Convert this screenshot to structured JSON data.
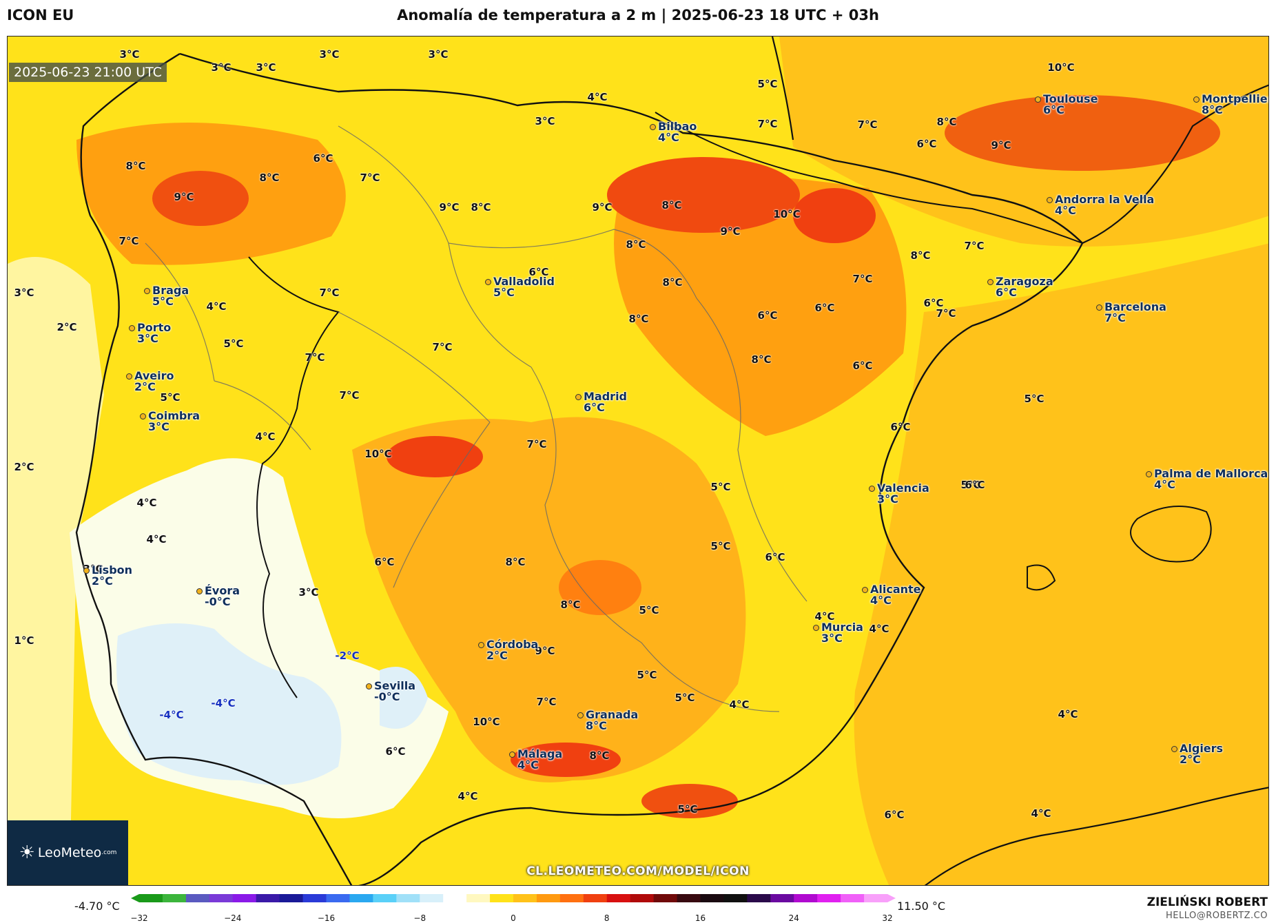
{
  "header": {
    "model": "ICON EU",
    "title": "Anomalía de temperatura a 2 m | 2025-06-23 18 UTC + 03h"
  },
  "map": {
    "valid_time": "2025-06-23 21:00 UTC",
    "watermark_url": "CL.LEOMETEO.COM/MODEL/ICON",
    "logo": {
      "brand": "LeoMeteo",
      "suffix": ".com",
      "icon": "sun-icon"
    },
    "cities": [
      {
        "name": "Bilbao",
        "value": "4°C"
      },
      {
        "name": "Toulouse",
        "value": "6°C"
      },
      {
        "name": "Montpellier",
        "value": "8°C"
      },
      {
        "name": "Andorra la Vella",
        "value": "4°C"
      },
      {
        "name": "Valladolid",
        "value": "5°C"
      },
      {
        "name": "Zaragoza",
        "value": "6°C"
      },
      {
        "name": "Braga",
        "value": "5°C"
      },
      {
        "name": "Barcelona",
        "value": "7°C"
      },
      {
        "name": "Porto",
        "value": "3°C"
      },
      {
        "name": "Aveiro",
        "value": "2°C"
      },
      {
        "name": "Madrid",
        "value": "6°C"
      },
      {
        "name": "Coimbra",
        "value": "3°C"
      },
      {
        "name": "Valencia",
        "value": "3°C"
      },
      {
        "name": "Palma de Mallorca",
        "value": "4°C"
      },
      {
        "name": "Lisbon",
        "value": "2°C"
      },
      {
        "name": "Évora",
        "value": "-0°C"
      },
      {
        "name": "Alicante",
        "value": "4°C"
      },
      {
        "name": "Murcia",
        "value": "3°C"
      },
      {
        "name": "Córdoba",
        "value": "2°C"
      },
      {
        "name": "Sevilla",
        "value": "-0°C"
      },
      {
        "name": "Granada",
        "value": "8°C"
      },
      {
        "name": "Málaga",
        "value": "4°C"
      },
      {
        "name": "Algiers",
        "value": "2°C"
      }
    ],
    "labels": [
      "3°C",
      "3°C",
      "3°C",
      "3°C",
      "3°C",
      "6°C",
      "7°C",
      "10°C",
      "4°C",
      "5°C",
      "3°C",
      "7°C",
      "8°C",
      "8°C",
      "8°C",
      "9°C",
      "6°C",
      "7°C",
      "9°C",
      "8°C",
      "9°C",
      "8°C",
      "10°C",
      "7°C",
      "9°C",
      "7°C",
      "9°C",
      "8°C",
      "7°C",
      "6°C",
      "6°C",
      "8°C",
      "3°C",
      "7°C",
      "4°C",
      "7°C",
      "8°C",
      "6°C",
      "6°C",
      "2°C",
      "5°C",
      "7°C",
      "8°C",
      "7°C",
      "8°C",
      "5°C",
      "5°C",
      "6°C",
      "10°C",
      "4°C",
      "7°C",
      "6°C",
      "7°C",
      "5°C",
      "5°C",
      "2°C",
      "4°C",
      "4°C",
      "5°C",
      "6°C",
      "6°C",
      "8°C",
      "3°C",
      "3°C",
      "8°C",
      "5°C",
      "6°C",
      "4°C",
      "4°C",
      "1°C",
      "-2°C",
      "9°C",
      "5°C",
      "-4°C",
      "-4°C",
      "7°C",
      "5°C",
      "4°C",
      "4°C",
      "10°C",
      "6°C",
      "8°C",
      "4°C",
      "5°C",
      "4°C",
      "6°C"
    ],
    "neg_color": "#1530c0"
  },
  "colorbar": {
    "min_label": "-4.70 °C",
    "max_label": "11.50 °C",
    "ticks": [
      "−32",
      "−24",
      "−16",
      "−8",
      "0",
      "8",
      "16",
      "24",
      "32"
    ],
    "colors": [
      "#1a9a1a",
      "#3cb53c",
      "#5a5ac0",
      "#7a3ad8",
      "#8a1ae8",
      "#3a1aa8",
      "#1a1a98",
      "#2a3ad8",
      "#3a6af0",
      "#2aa8f0",
      "#5ad0f8",
      "#a0e0f8",
      "#d8f0fa",
      "#ffffff",
      "#fff8c0",
      "#ffe21a",
      "#ffc21a",
      "#ff9a10",
      "#ff7010",
      "#f04010",
      "#d81010",
      "#b00a0a",
      "#700a0a",
      "#380a10",
      "#1a0a10",
      "#101010",
      "#2a0a4a",
      "#6a0aa0",
      "#b00ad0",
      "#e020f0",
      "#f060f8",
      "#f8a0fa"
    ]
  },
  "footer": {
    "author": "ZIELIŃSKI ROBERT",
    "email": "HELLO@ROBERTZ.CO"
  }
}
